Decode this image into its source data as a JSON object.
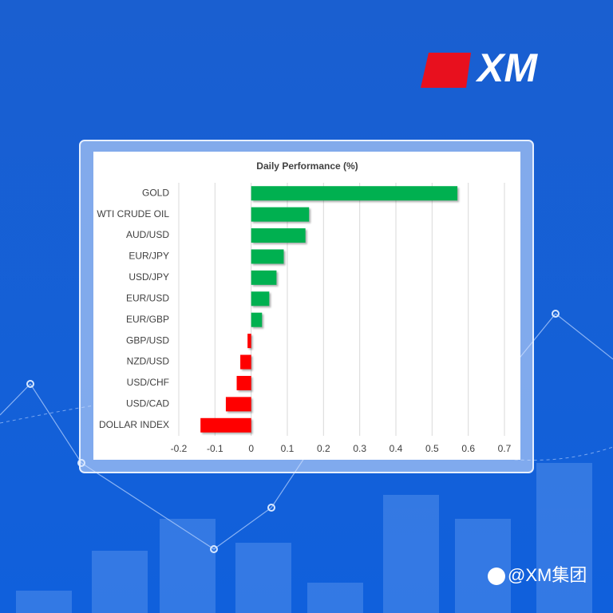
{
  "logo": "XM",
  "watermark": "@XM集团",
  "chart_data": {
    "type": "bar",
    "orientation": "horizontal",
    "title": "Daily Performance (%)",
    "categories": [
      "GOLD",
      "WTI CRUDE OIL",
      "AUD/USD",
      "EUR/JPY",
      "USD/JPY",
      "EUR/USD",
      "EUR/GBP",
      "GBP/USD",
      "NZD/USD",
      "USD/CHF",
      "USD/CAD",
      "DOLLAR INDEX"
    ],
    "values": [
      0.57,
      0.16,
      0.15,
      0.09,
      0.07,
      0.05,
      0.03,
      -0.01,
      -0.03,
      -0.04,
      -0.07,
      -0.14
    ],
    "colors": [
      "#00b050",
      "#00b050",
      "#00b050",
      "#00b050",
      "#00b050",
      "#00b050",
      "#00b050",
      "#ff0000",
      "#ff0000",
      "#ff0000",
      "#ff0000",
      "#ff0000"
    ],
    "xlim": [
      -0.2,
      0.7
    ],
    "xticks": [
      -0.2,
      -0.1,
      0,
      0.1,
      0.2,
      0.3,
      0.4,
      0.5,
      0.6,
      0.7
    ],
    "grid": true
  }
}
